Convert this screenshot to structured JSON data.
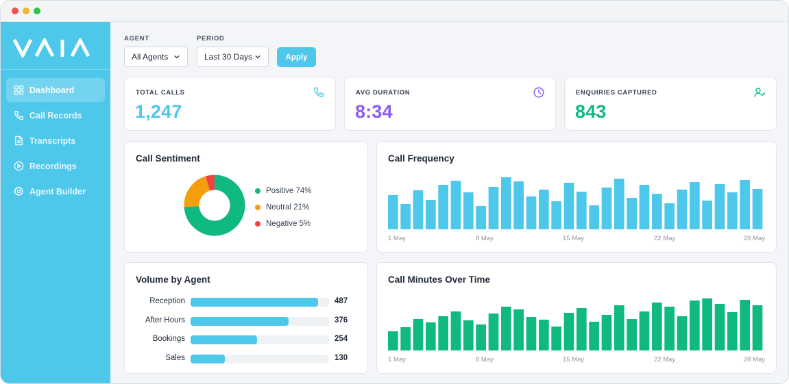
{
  "brand": {
    "logo": "VAIA",
    "accent": "#4dc7ea"
  },
  "sidebar": {
    "items": [
      {
        "label": "Dashboard",
        "icon": "grid-icon",
        "active": true
      },
      {
        "label": "Call Records",
        "icon": "phone-icon",
        "active": false
      },
      {
        "label": "Transcripts",
        "icon": "document-icon",
        "active": false
      },
      {
        "label": "Recordings",
        "icon": "play-circle-icon",
        "active": false
      },
      {
        "label": "Agent Builder",
        "icon": "gear-icon",
        "active": false
      }
    ]
  },
  "filters": {
    "agent_label": "AGENT",
    "agent_value": "All Agents",
    "period_label": "PERIOD",
    "period_value": "Last 30 Days",
    "apply_label": "Apply"
  },
  "stats": [
    {
      "title": "TOTAL CALLS",
      "value": "1,247",
      "color": "#4dc7ea",
      "icon": "phone-icon"
    },
    {
      "title": "AVG DURATION",
      "value": "8:34",
      "color": "#8b5cf6",
      "icon": "clock-icon"
    },
    {
      "title": "ENQUIRIES CAPTURED",
      "value": "843",
      "color": "#10b981",
      "icon": "user-check-icon"
    }
  ],
  "sentiment": {
    "title": "Call Sentiment",
    "legend": [
      "Positive 74%",
      "Neutral 21%",
      "Negative 5%"
    ],
    "chart_data": {
      "type": "pie",
      "labels": [
        "Positive",
        "Neutral",
        "Negative"
      ],
      "values": [
        74,
        21,
        5
      ],
      "colors": [
        "#10b981",
        "#f59e0b",
        "#ef4444"
      ]
    }
  },
  "frequency": {
    "title": "Call Frequency",
    "ticks": [
      "1 May",
      "8 May",
      "15 May",
      "22 May",
      "28 May"
    ],
    "chart_data": {
      "type": "bar",
      "color": "#4dc7ea",
      "values": [
        50,
        37,
        57,
        43,
        65,
        71,
        54,
        34,
        62,
        76,
        70,
        48,
        58,
        41,
        68,
        55,
        35,
        61,
        74,
        46,
        65,
        52,
        38,
        58,
        69,
        42,
        66,
        54,
        72,
        59
      ]
    }
  },
  "agents": {
    "title": "Volume by Agent",
    "chart_data": {
      "type": "bar",
      "orientation": "horizontal",
      "categories": [
        "Reception",
        "After Hours",
        "Bookings",
        "Sales"
      ],
      "values": [
        487,
        376,
        254,
        130
      ],
      "max": 530
    }
  },
  "minutes": {
    "title": "Call Minutes Over Time",
    "ticks": [
      "1 May",
      "8 May",
      "15 May",
      "22 May",
      "28 May"
    ],
    "chart_data": {
      "type": "bar",
      "color": "#10b981",
      "values": [
        28,
        34,
        46,
        41,
        50,
        57,
        44,
        38,
        54,
        64,
        60,
        49,
        45,
        35,
        55,
        62,
        42,
        52,
        66,
        46,
        57,
        70,
        64,
        50,
        73,
        76,
        68,
        56,
        74,
        66
      ]
    }
  }
}
